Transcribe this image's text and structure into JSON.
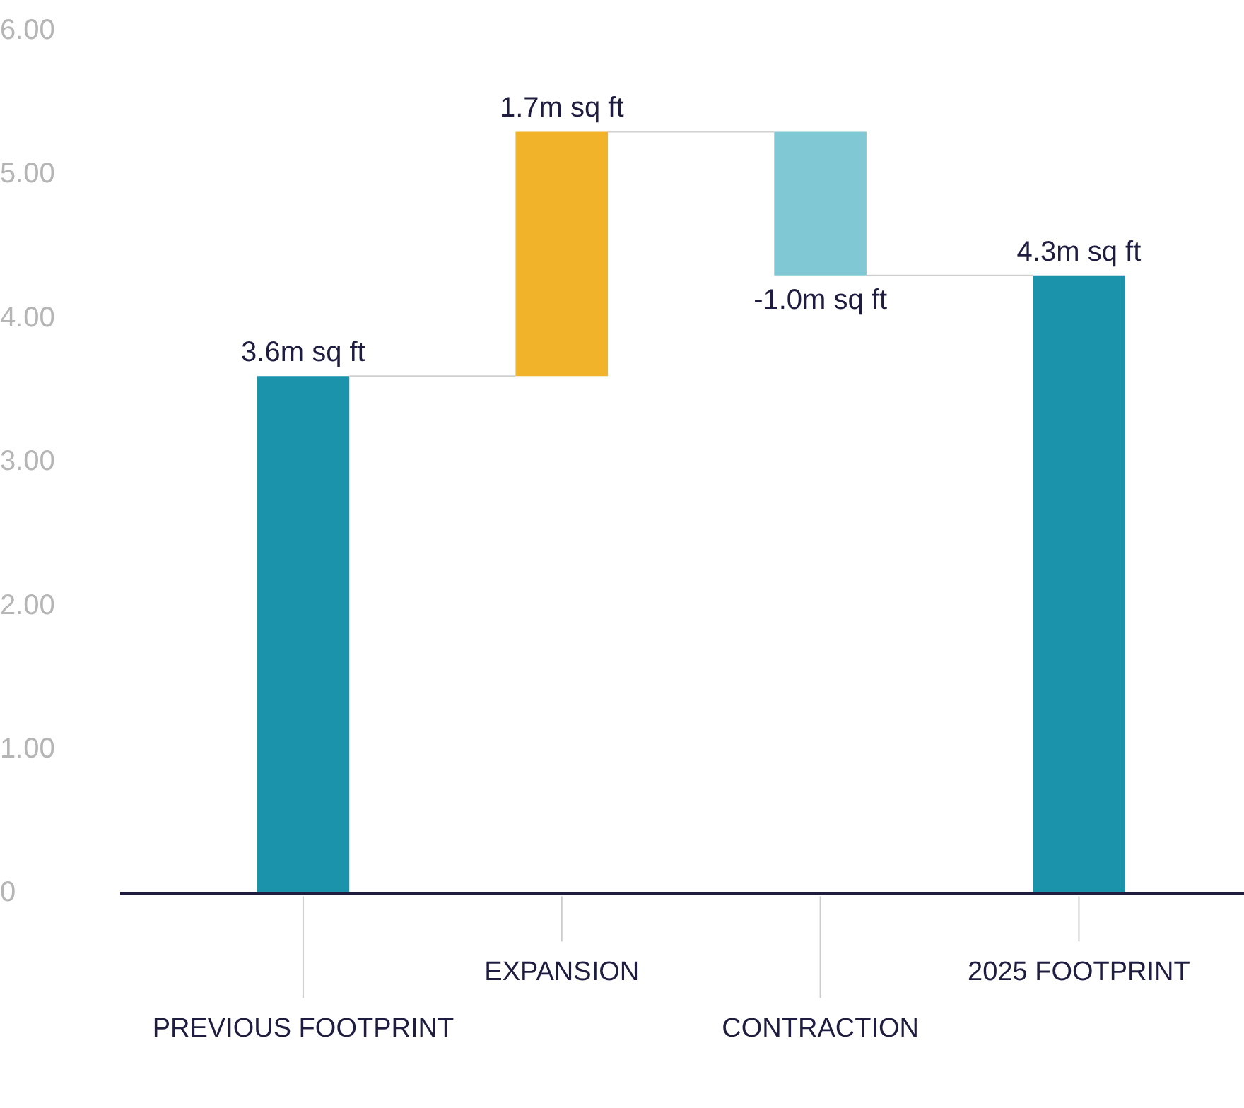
{
  "chart_data": {
    "type": "bar",
    "categories": [
      "PREVIOUS FOOTPRINT",
      "EXPANSION",
      "CONTRACTION",
      "2025 FOOTPRINT"
    ],
    "values": [
      3.6,
      1.7,
      -1.0,
      4.3
    ],
    "base": [
      0,
      3.6,
      5.3,
      0
    ],
    "colors": [
      "#1a93ab",
      "#f0b32a",
      "#80c8d4",
      "#1a93ab"
    ],
    "value_labels": [
      "3.6m sq ft",
      "1.7m sq ft",
      "-1.0m sq ft",
      "4.3m sq ft"
    ],
    "ylim": [
      0,
      6
    ],
    "yticks": [
      {
        "value": 0,
        "label": "0"
      },
      {
        "value": 1,
        "label": "1.00"
      },
      {
        "value": 2,
        "label": "2.00"
      },
      {
        "value": 3,
        "label": "3.00"
      },
      {
        "value": 4,
        "label": "4.00"
      },
      {
        "value": 5,
        "label": "5.00"
      },
      {
        "value": 6,
        "label": "6.00"
      }
    ],
    "grid": false,
    "legend": false
  }
}
